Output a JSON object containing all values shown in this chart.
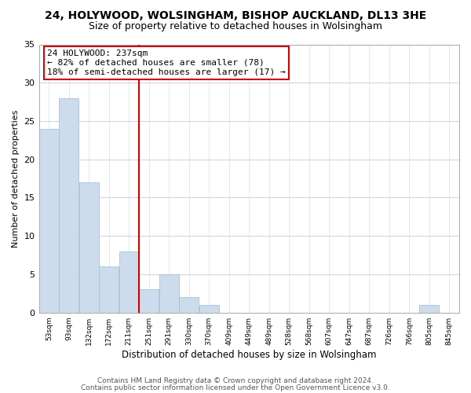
{
  "title": "24, HOLYWOOD, WOLSINGHAM, BISHOP AUCKLAND, DL13 3HE",
  "subtitle": "Size of property relative to detached houses in Wolsingham",
  "xlabel": "Distribution of detached houses by size in Wolsingham",
  "ylabel": "Number of detached properties",
  "bar_color": "#ccdcec",
  "bar_edge_color": "#a8c0d4",
  "bin_labels": [
    "53sqm",
    "93sqm",
    "132sqm",
    "172sqm",
    "211sqm",
    "251sqm",
    "291sqm",
    "330sqm",
    "370sqm",
    "409sqm",
    "449sqm",
    "489sqm",
    "528sqm",
    "568sqm",
    "607sqm",
    "647sqm",
    "687sqm",
    "726sqm",
    "766sqm",
    "805sqm",
    "845sqm"
  ],
  "bar_heights": [
    24,
    28,
    17,
    6,
    8,
    3,
    5,
    2,
    1,
    0,
    0,
    0,
    0,
    0,
    0,
    0,
    0,
    0,
    0,
    1,
    0
  ],
  "ylim": [
    0,
    35
  ],
  "yticks": [
    0,
    5,
    10,
    15,
    20,
    25,
    30,
    35
  ],
  "property_line_bin": 5,
  "property_line_color": "#cc0000",
  "annotation_line1": "24 HOLYWOOD: 237sqm",
  "annotation_line2": "← 82% of detached houses are smaller (78)",
  "annotation_line3": "18% of semi-detached houses are larger (17) →",
  "annotation_box_color": "#ffffff",
  "annotation_box_edge_color": "#cc0000",
  "footer_line1": "Contains HM Land Registry data © Crown copyright and database right 2024.",
  "footer_line2": "Contains public sector information licensed under the Open Government Licence v3.0.",
  "title_fontsize": 10,
  "subtitle_fontsize": 9,
  "annotation_fontsize": 8,
  "footer_fontsize": 6.5,
  "background_color": "#ffffff",
  "grid_color": "#c8d8e8"
}
